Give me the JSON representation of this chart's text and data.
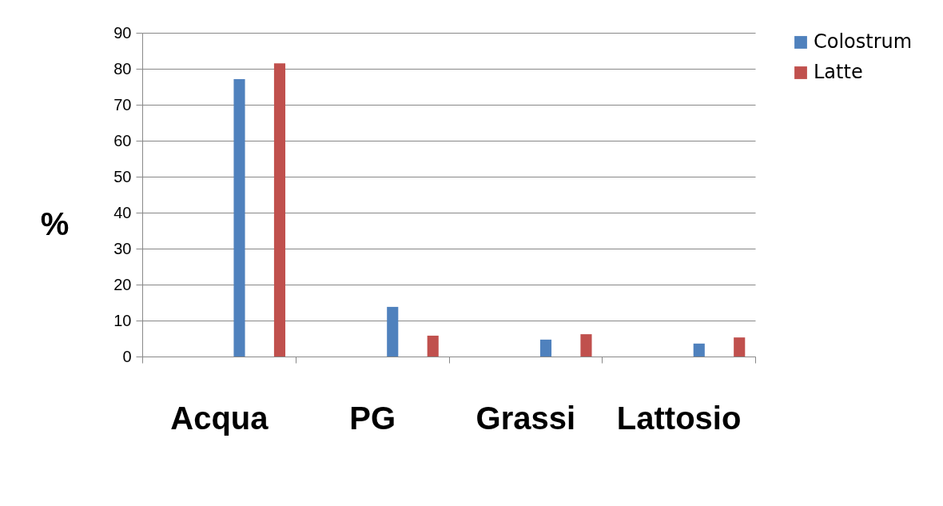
{
  "chart_data": {
    "type": "bar",
    "ylabel": "%",
    "categories": [
      "Acqua",
      "PG",
      "Grassi",
      "Lattosio"
    ],
    "series": [
      {
        "name": "Colostrum",
        "color": "#4f81bd",
        "values": [
          77.1,
          13.8,
          4.7,
          3.6
        ]
      },
      {
        "name": "Latte",
        "color": "#c0504d",
        "values": [
          81.5,
          5.8,
          6.2,
          5.3
        ]
      }
    ],
    "ylim": [
      0,
      90
    ],
    "yticks": [
      0,
      10,
      20,
      30,
      40,
      50,
      60,
      70,
      80,
      90
    ],
    "grid": "y",
    "legend": "right"
  }
}
